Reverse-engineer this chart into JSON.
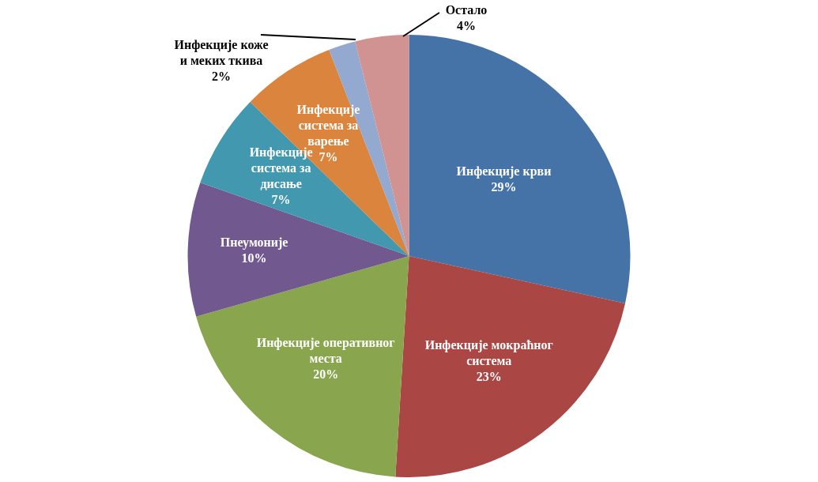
{
  "chart_data": {
    "type": "pie",
    "categories": [
      "Инфекције крви",
      "Инфекције мокраћног система",
      "Инфекције оперативног места",
      "Пнеумоније",
      "Инфекције система за дисање",
      "Инфекције система за варење",
      "Инфекције коже и меких ткива",
      "Остало"
    ],
    "values": [
      29,
      23,
      20,
      10,
      7,
      7,
      2,
      4
    ],
    "value_labels": [
      "29%",
      "23%",
      "20%",
      "10%",
      "7%",
      "7%",
      "2%",
      "4%"
    ],
    "colors": [
      "#4572a7",
      "#aa4643",
      "#89a54e",
      "#71588f",
      "#4198af",
      "#db843d",
      "#93a9cf",
      "#d19392"
    ],
    "legend": false
  }
}
